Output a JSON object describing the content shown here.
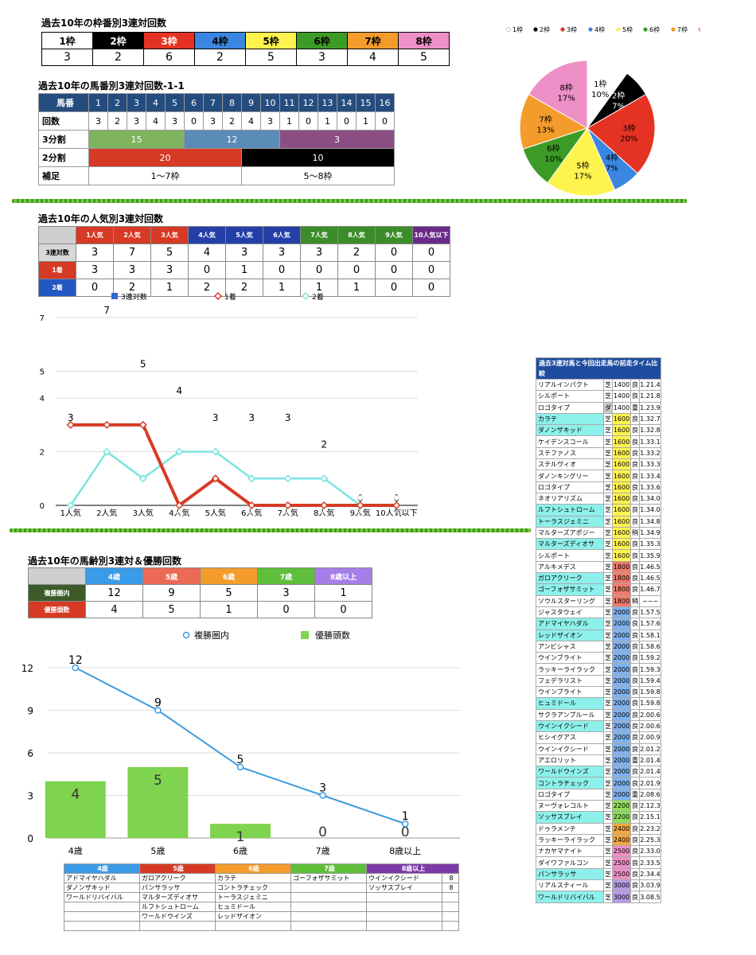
{
  "waku": {
    "title": "過去10年の枠番別3連対回数",
    "headers": [
      "1枠",
      "2枠",
      "3枠",
      "4枠",
      "5枠",
      "6枠",
      "7枠",
      "8枠"
    ],
    "colors": [
      "#ffffff",
      "#000000",
      "#e53323",
      "#3a86e0",
      "#fff34d",
      "#3c9b27",
      "#f39c2c",
      "#ee8fc8"
    ],
    "text_colors": [
      "#000",
      "#fff",
      "#fff",
      "#000",
      "#000",
      "#000",
      "#000",
      "#000"
    ],
    "counts": [
      "3",
      "2",
      "6",
      "2",
      "5",
      "3",
      "4",
      "5"
    ]
  },
  "pie": {
    "legend": [
      "1枠",
      "2枠",
      "3枠",
      "4枠",
      "5枠",
      "6枠",
      "7枠",
      "8枠"
    ],
    "slices": [
      {
        "label": "1枠",
        "pct": "10%",
        "value": 3
      },
      {
        "label": "2枠",
        "pct": "7%",
        "value": 2
      },
      {
        "label": "3枠",
        "pct": "20%",
        "value": 6
      },
      {
        "label": "4枠",
        "pct": "7%",
        "value": 2
      },
      {
        "label": "5枠",
        "pct": "17%",
        "value": 5
      },
      {
        "label": "6枠",
        "pct": "10%",
        "value": 3
      },
      {
        "label": "7枠",
        "pct": "13%",
        "value": 4
      },
      {
        "label": "8枠",
        "pct": "17%",
        "value": 5
      }
    ]
  },
  "umaban": {
    "title": "過去10年の馬番別3連対回数-1-1",
    "row_labels": [
      "馬番",
      "回数",
      "3分割",
      "2分割",
      "補足"
    ],
    "numbers": [
      "1",
      "2",
      "3",
      "4",
      "5",
      "6",
      "7",
      "8",
      "9",
      "10",
      "11",
      "12",
      "13",
      "14",
      "15",
      "16"
    ],
    "counts": [
      "3",
      "2",
      "3",
      "4",
      "3",
      "0",
      "3",
      "2",
      "4",
      "3",
      "1",
      "0",
      "1",
      "0",
      "1",
      "0"
    ],
    "thirds": [
      "15",
      "12",
      "3"
    ],
    "halves": [
      "20",
      "10"
    ],
    "notes": [
      "1〜7枠",
      "5〜8枠"
    ]
  },
  "ninki": {
    "title": "過去10年の人気別3連対回数",
    "headers": [
      "1人気",
      "2人気",
      "3人気",
      "4人気",
      "5人気",
      "6人気",
      "7人気",
      "8人気",
      "9人気",
      "10人気以下"
    ],
    "row_labels": [
      "3連対数",
      "1着",
      "2着"
    ],
    "rows": [
      [
        "3",
        "7",
        "5",
        "4",
        "3",
        "3",
        "3",
        "2",
        "0",
        "0"
      ],
      [
        "3",
        "3",
        "3",
        "0",
        "1",
        "0",
        "0",
        "0",
        "0",
        "0"
      ],
      [
        "0",
        "2",
        "1",
        "2",
        "2",
        "1",
        "1",
        "1",
        "0",
        "0"
      ]
    ]
  },
  "age": {
    "title": "過去10年の馬齢別3連対＆優勝回数",
    "headers": [
      "4歳",
      "5歳",
      "6歳",
      "7歳",
      "8歳以上"
    ],
    "row_labels": [
      "複勝圏内",
      "優勝頭数"
    ],
    "rows": [
      [
        "12",
        "9",
        "5",
        "3",
        "1"
      ],
      [
        "4",
        "5",
        "1",
        "0",
        "0"
      ]
    ]
  },
  "names": {
    "headers": [
      "4歳",
      "5歳",
      "6歳",
      "7歳",
      "8歳以上"
    ],
    "rows": [
      [
        "アドマイヤハダル",
        "ガロアクリーク",
        "カラテ",
        "ゴーフォザサミット",
        "ウインイクシード",
        "8"
      ],
      [
        "ダノンザキッド",
        "パンサラッサ",
        "コントラチェック",
        "",
        "ソッサスブレイ",
        "8"
      ],
      [
        "ワールドリバイバル",
        "マルターズディオサ",
        "トーラスジェミニ",
        "",
        "",
        ""
      ],
      [
        "",
        "ルフトシュトローム",
        "ヒュミドール",
        "",
        "",
        ""
      ],
      [
        "",
        "ワールドウインズ",
        "レッドザイオン",
        "",
        "",
        ""
      ],
      [
        "",
        "",
        "",
        "",
        "",
        ""
      ]
    ]
  },
  "times": {
    "title": "過去3連対馬と今回出走馬の前走タイム比較",
    "rows": [
      {
        "name": "リアルインパクト",
        "hl": false,
        "surf": "芝",
        "dist": "1400",
        "cond": "良",
        "time": "1.21.4",
        "dc": "#ffffff"
      },
      {
        "name": "シルポート",
        "hl": false,
        "surf": "芝",
        "dist": "1400",
        "cond": "良",
        "time": "1.21.8",
        "dc": "#ffffff"
      },
      {
        "name": "ロゴタイプ",
        "hl": false,
        "surf": "ダ",
        "dist": "1400",
        "cond": "重",
        "time": "1.23.9",
        "dc": "#ffffff"
      },
      {
        "name": "カラテ",
        "hl": true,
        "surf": "芝",
        "dist": "1600",
        "cond": "良",
        "time": "1.32.7",
        "dc": "#fff34d"
      },
      {
        "name": "ダノンザキッド",
        "hl": true,
        "surf": "芝",
        "dist": "1600",
        "cond": "良",
        "time": "1.32.8",
        "dc": "#fff34d"
      },
      {
        "name": "ケイデンスコール",
        "hl": false,
        "surf": "芝",
        "dist": "1600",
        "cond": "良",
        "time": "1.33.1",
        "dc": "#fff34d"
      },
      {
        "name": "ステファノス",
        "hl": false,
        "surf": "芝",
        "dist": "1600",
        "cond": "良",
        "time": "1.33.2",
        "dc": "#fff34d"
      },
      {
        "name": "ステルヴィオ",
        "hl": false,
        "surf": "芝",
        "dist": "1600",
        "cond": "良",
        "time": "1.33.3",
        "dc": "#fff34d"
      },
      {
        "name": "ダノンキングリー",
        "hl": false,
        "surf": "芝",
        "dist": "1600",
        "cond": "良",
        "time": "1.33.4",
        "dc": "#fff34d"
      },
      {
        "name": "ロゴタイプ",
        "hl": false,
        "surf": "芝",
        "dist": "1600",
        "cond": "良",
        "time": "1.33.6",
        "dc": "#fff34d"
      },
      {
        "name": "ネオリアリズム",
        "hl": false,
        "surf": "芝",
        "dist": "1600",
        "cond": "良",
        "time": "1.34.0",
        "dc": "#fff34d"
      },
      {
        "name": "ルフトシュトローム",
        "hl": true,
        "surf": "芝",
        "dist": "1600",
        "cond": "良",
        "time": "1.34.0",
        "dc": "#fff34d"
      },
      {
        "name": "トーラスジェミニ",
        "hl": true,
        "surf": "芝",
        "dist": "1600",
        "cond": "良",
        "time": "1.34.8",
        "dc": "#fff34d"
      },
      {
        "name": "マルターズアポジー",
        "hl": false,
        "surf": "芝",
        "dist": "1600",
        "cond": "稍",
        "time": "1.34.9",
        "dc": "#fff34d"
      },
      {
        "name": "マルターズディオサ",
        "hl": true,
        "surf": "芝",
        "dist": "1600",
        "cond": "良",
        "time": "1.35.3",
        "dc": "#fff34d"
      },
      {
        "name": "シルポート",
        "hl": false,
        "surf": "芝",
        "dist": "1600",
        "cond": "良",
        "time": "1.35.9",
        "dc": "#fff34d"
      },
      {
        "name": "アルキメデス",
        "hl": false,
        "surf": "芝",
        "dist": "1800",
        "cond": "良",
        "time": "1.46.5",
        "dc": "#f07a6a"
      },
      {
        "name": "ガロアクリーク",
        "hl": true,
        "surf": "芝",
        "dist": "1800",
        "cond": "良",
        "time": "1.46.5",
        "dc": "#f07a6a"
      },
      {
        "name": "ゴーフォザサミット",
        "hl": true,
        "surf": "芝",
        "dist": "1800",
        "cond": "良",
        "time": "1.46.7",
        "dc": "#f07a6a"
      },
      {
        "name": "ソウルスターリング",
        "hl": false,
        "surf": "芝",
        "dist": "1800",
        "cond": "稍",
        "time": "−−−",
        "dc": "#f07a6a"
      },
      {
        "name": "ジャスタウェイ",
        "hl": false,
        "surf": "芝",
        "dist": "2000",
        "cond": "良",
        "time": "1.57.5",
        "dc": "#7fb2ee"
      },
      {
        "name": "アドマイヤハダル",
        "hl": true,
        "surf": "芝",
        "dist": "2000",
        "cond": "良",
        "time": "1.57.6",
        "dc": "#7fb2ee"
      },
      {
        "name": "レッドザイオン",
        "hl": true,
        "surf": "芝",
        "dist": "2000",
        "cond": "良",
        "time": "1.58.1",
        "dc": "#7fb2ee"
      },
      {
        "name": "アンビシャス",
        "hl": false,
        "surf": "芝",
        "dist": "2000",
        "cond": "良",
        "time": "1.58.6",
        "dc": "#7fb2ee"
      },
      {
        "name": "ウインブライト",
        "hl": false,
        "surf": "芝",
        "dist": "2000",
        "cond": "良",
        "time": "1.59.2",
        "dc": "#7fb2ee"
      },
      {
        "name": "ラッキーライラック",
        "hl": false,
        "surf": "芝",
        "dist": "2000",
        "cond": "良",
        "time": "1.59.3",
        "dc": "#7fb2ee"
      },
      {
        "name": "フェデラリスト",
        "hl": false,
        "surf": "芝",
        "dist": "2000",
        "cond": "良",
        "time": "1.59.4",
        "dc": "#7fb2ee"
      },
      {
        "name": "ウインブライト",
        "hl": false,
        "surf": "芝",
        "dist": "2000",
        "cond": "良",
        "time": "1.59.8",
        "dc": "#7fb2ee"
      },
      {
        "name": "ヒュミドール",
        "hl": true,
        "surf": "芝",
        "dist": "2000",
        "cond": "良",
        "time": "1.59.8",
        "dc": "#7fb2ee"
      },
      {
        "name": "サクラアンプルール",
        "hl": false,
        "surf": "芝",
        "dist": "2000",
        "cond": "良",
        "time": "2.00.6",
        "dc": "#7fb2ee"
      },
      {
        "name": "ウインイクシード",
        "hl": true,
        "surf": "芝",
        "dist": "2000",
        "cond": "良",
        "time": "2.00.6",
        "dc": "#7fb2ee"
      },
      {
        "name": "ヒシイグアス",
        "hl": false,
        "surf": "芝",
        "dist": "2000",
        "cond": "良",
        "time": "2.00.9",
        "dc": "#7fb2ee"
      },
      {
        "name": "ウインイクシード",
        "hl": false,
        "surf": "芝",
        "dist": "2000",
        "cond": "良",
        "time": "2.01.2",
        "dc": "#7fb2ee"
      },
      {
        "name": "アエロリット",
        "hl": false,
        "surf": "芝",
        "dist": "2000",
        "cond": "重",
        "time": "2.01.4",
        "dc": "#7fb2ee"
      },
      {
        "name": "ワールドウインズ",
        "hl": true,
        "surf": "芝",
        "dist": "2000",
        "cond": "良",
        "time": "2.01.4",
        "dc": "#7fb2ee"
      },
      {
        "name": "コントラチェック",
        "hl": true,
        "surf": "芝",
        "dist": "2000",
        "cond": "良",
        "time": "2.01.9",
        "dc": "#7fb2ee"
      },
      {
        "name": "ロゴタイプ",
        "hl": false,
        "surf": "芝",
        "dist": "2000",
        "cond": "重",
        "time": "2.08.6",
        "dc": "#7fb2ee"
      },
      {
        "name": "ヌーヴォレコルト",
        "hl": false,
        "surf": "芝",
        "dist": "2200",
        "cond": "良",
        "time": "2.12.3",
        "dc": "#8edc5a"
      },
      {
        "name": "ソッサスブレイ",
        "hl": true,
        "surf": "芝",
        "dist": "2200",
        "cond": "良",
        "time": "2.15.1",
        "dc": "#8edc5a"
      },
      {
        "name": "ドゥラメンテ",
        "hl": false,
        "surf": "芝",
        "dist": "2400",
        "cond": "良",
        "time": "2.23.2",
        "dc": "#f5a640"
      },
      {
        "name": "ラッキーライラック",
        "hl": false,
        "surf": "芝",
        "dist": "2400",
        "cond": "良",
        "time": "2.25.3",
        "dc": "#f5a640"
      },
      {
        "name": "ナカヤマナイト",
        "hl": false,
        "surf": "芝",
        "dist": "2500",
        "cond": "良",
        "time": "2.33.0",
        "dc": "#ee8fc8"
      },
      {
        "name": "ダイワファルコン",
        "hl": false,
        "surf": "芝",
        "dist": "2500",
        "cond": "良",
        "time": "2.33.5",
        "dc": "#ee8fc8"
      },
      {
        "name": "パンサラッサ",
        "hl": true,
        "surf": "芝",
        "dist": "2500",
        "cond": "良",
        "time": "2.34.4",
        "dc": "#ee8fc8"
      },
      {
        "name": "リアルスティール",
        "hl": false,
        "surf": "芝",
        "dist": "3000",
        "cond": "良",
        "time": "3.03.9",
        "dc": "#b79be8"
      },
      {
        "name": "ワールドリバイバル",
        "hl": true,
        "surf": "芝",
        "dist": "3000",
        "cond": "良",
        "time": "3.08.5",
        "dc": "#b79be8"
      }
    ]
  },
  "chart_data": [
    {
      "type": "bar",
      "categories": [
        "1人気",
        "2人気",
        "3人気",
        "4人気",
        "5人気",
        "6人気",
        "7人気",
        "8人気",
        "9人気",
        "10人気以下"
      ],
      "series": [
        {
          "name": "3連対数",
          "kind": "bar",
          "values": [
            3,
            7,
            5,
            4,
            3,
            3,
            3,
            2,
            0,
            0
          ]
        },
        {
          "name": "1着",
          "kind": "line",
          "values": [
            3,
            3,
            3,
            0,
            1,
            0,
            0,
            0,
            0,
            0
          ]
        },
        {
          "name": "2着",
          "kind": "line",
          "values": [
            0,
            2,
            1,
            2,
            2,
            1,
            1,
            1,
            0,
            0
          ]
        }
      ],
      "ylim": [
        0,
        7
      ],
      "yticks": [
        0,
        2,
        4,
        5,
        7
      ],
      "legend": "top",
      "colors": {
        "bar": "#2e6bcc",
        "line1": "#d63a24",
        "line2": "#7be5e0"
      }
    },
    {
      "type": "bar",
      "categories": [
        "4歳",
        "5歳",
        "6歳",
        "7歳",
        "8歳以上"
      ],
      "series": [
        {
          "name": "複勝圏内",
          "kind": "line",
          "values": [
            12,
            9,
            5,
            3,
            1
          ]
        },
        {
          "name": "優勝頭数",
          "kind": "bar",
          "values": [
            4,
            5,
            1,
            0,
            0
          ]
        }
      ],
      "ylim": [
        0,
        12
      ],
      "yticks": [
        0,
        3,
        6,
        9,
        12
      ],
      "legend": "top",
      "colors": {
        "line": "#3b9be0",
        "bar": "#7fd44f"
      }
    }
  ]
}
